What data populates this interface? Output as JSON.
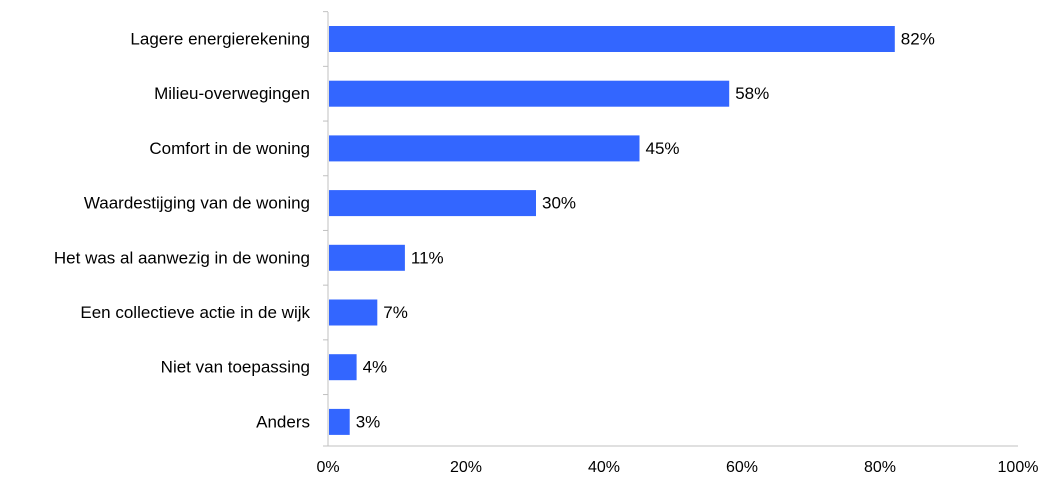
{
  "chart_data": {
    "type": "bar",
    "orientation": "horizontal",
    "categories": [
      "Lagere energierekening",
      "Milieu-overwegingen",
      "Comfort in de woning",
      "Waardestijging van de woning",
      "Het was al aanwezig in de woning",
      "Een collectieve actie in de wijk",
      "Niet van toepassing",
      "Anders"
    ],
    "values": [
      82,
      58,
      45,
      30,
      11,
      7,
      4,
      3
    ],
    "value_labels": [
      "82%",
      "58%",
      "45%",
      "30%",
      "11%",
      "7%",
      "4%",
      "3%"
    ],
    "x_ticks": [
      "0%",
      "20%",
      "40%",
      "60%",
      "80%",
      "100%"
    ],
    "xlim": [
      0,
      100
    ],
    "title": "",
    "xlabel": "",
    "ylabel": "",
    "grid": false,
    "legend": "none",
    "bar_color": "#3366ff"
  }
}
